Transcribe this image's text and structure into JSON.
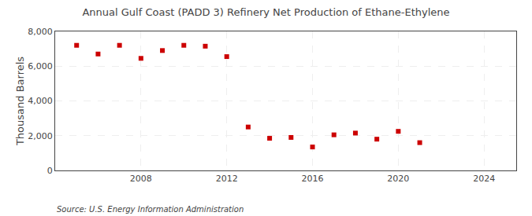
{
  "chart_data": {
    "type": "scatter",
    "title": "Annual Gulf Coast (PADD 3) Refinery Net Production of Ethane-Ethylene",
    "ylabel": "Thousand Barrels",
    "annotations": [
      "Source: U.S. Energy Information Administration"
    ],
    "x": [
      2005,
      2006,
      2007,
      2008,
      2009,
      2010,
      2011,
      2012,
      2013,
      2014,
      2015,
      2016,
      2017,
      2018,
      2019,
      2020,
      2021
    ],
    "values": [
      7200,
      6700,
      7200,
      6450,
      6900,
      7200,
      7150,
      6550,
      2500,
      1850,
      1900,
      1350,
      2050,
      2150,
      1800,
      2250,
      1600
    ],
    "color": "#cc0000",
    "marker": "square",
    "xlim": [
      2004,
      2025.5
    ],
    "xticks": [
      2008,
      2012,
      2016,
      2020,
      2024
    ],
    "ylim": [
      0,
      8000
    ],
    "yticks": [
      0,
      {
        "value": 2000,
        "label": "2,000"
      },
      {
        "value": 4000,
        "label": "4,000"
      },
      {
        "value": 6000,
        "label": "6,000"
      },
      {
        "value": 8000,
        "label": "8,000"
      }
    ],
    "grid": true
  }
}
